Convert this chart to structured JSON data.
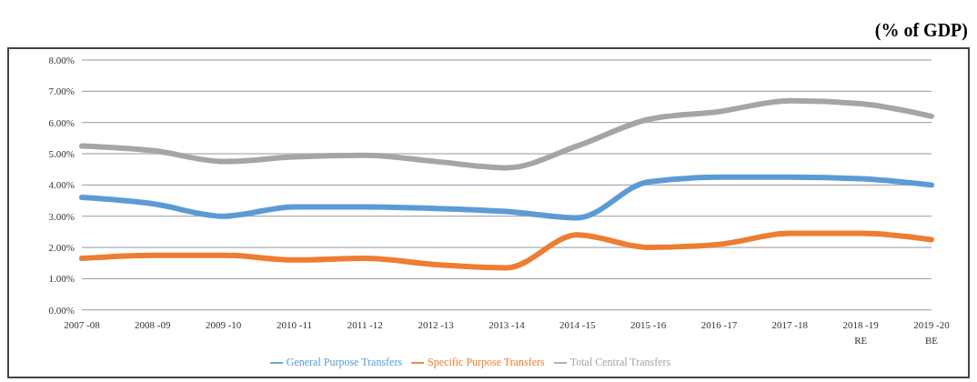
{
  "chart_data": {
    "type": "line",
    "annotations": [
      "(% of GDP)"
    ],
    "categories": [
      "2007 -08",
      "2008 -09",
      "2009 -10",
      "2010 -11",
      "2011 -12",
      "2012 -13",
      "2013 -14",
      "2014 -15",
      "2015 -16",
      "2016 -17",
      "2017 -18",
      "2018 -19\nRE",
      "2019 -20\nBE"
    ],
    "series": [
      {
        "name": "General Purpose Transfers",
        "color": "#5b9bd5",
        "values": [
          3.6,
          3.4,
          3.0,
          3.3,
          3.3,
          3.25,
          3.15,
          2.95,
          4.1,
          4.25,
          4.25,
          4.2,
          4.0
        ]
      },
      {
        "name": "Specific Purpose Transfers",
        "color": "#ed7d31",
        "values": [
          1.65,
          1.75,
          1.75,
          1.6,
          1.65,
          1.45,
          1.35,
          2.4,
          2.0,
          2.1,
          2.45,
          2.45,
          2.25
        ]
      },
      {
        "name": "Total Central Transfers",
        "color": "#a5a5a5",
        "values": [
          5.25,
          5.1,
          4.75,
          4.9,
          4.95,
          4.75,
          4.55,
          5.25,
          6.1,
          6.35,
          6.7,
          6.6,
          6.2
        ]
      }
    ],
    "ylim": [
      0,
      8
    ],
    "yticks": [
      {
        "value": 0,
        "label": "0.00%"
      },
      {
        "value": 1,
        "label": "1.00%"
      },
      {
        "value": 2,
        "label": "2.00%"
      },
      {
        "value": 3,
        "label": "3.00%"
      },
      {
        "value": 4,
        "label": "4.00%"
      },
      {
        "value": 5,
        "label": "5.00%"
      },
      {
        "value": 6,
        "label": "6.00%"
      },
      {
        "value": 7,
        "label": "7.00%"
      },
      {
        "value": 8,
        "label": "8.00%"
      }
    ],
    "grid": "y",
    "legend": "bottom",
    "marker": "none",
    "line_style": "solid"
  }
}
